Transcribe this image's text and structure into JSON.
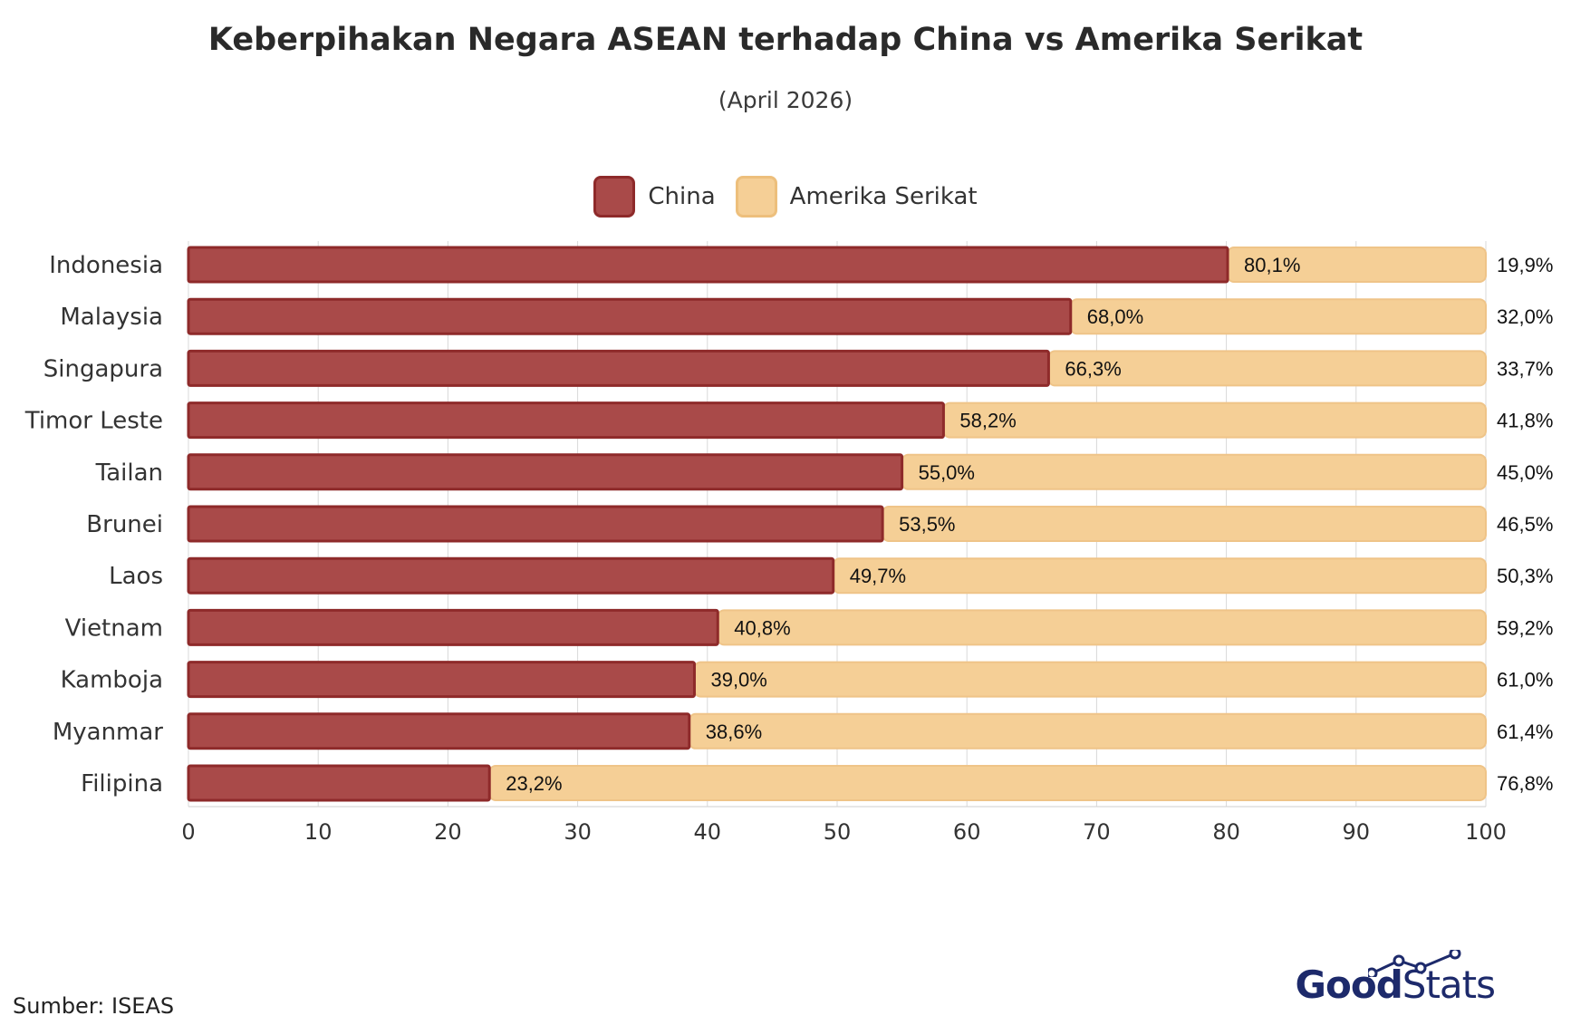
{
  "header": {
    "title": "Keberpihakan Negara ASEAN terhadap China vs Amerika Serikat",
    "subtitle": "(April 2026)"
  },
  "legend": {
    "items": [
      {
        "label": "China",
        "color": "#a94a49",
        "border": "#8e2a2a"
      },
      {
        "label": "Amerika Serikat",
        "color": "#f5cf96",
        "border": "#edbf7c"
      }
    ]
  },
  "footer": {
    "source": "Sumber: ISEAS",
    "logo_part1": "Good",
    "logo_part2": "Stats"
  },
  "chart_data": {
    "type": "bar",
    "orientation": "horizontal",
    "stacked": true,
    "categories": [
      "Indonesia",
      "Malaysia",
      "Singapura",
      "Timor Leste",
      "Tailan",
      "Brunei",
      "Laos",
      "Vietnam",
      "Kamboja",
      "Myanmar",
      "Filipina"
    ],
    "series": [
      {
        "name": "China",
        "color": "#a94a49",
        "values": [
          80.1,
          68.0,
          66.3,
          58.2,
          55.0,
          53.5,
          49.7,
          40.8,
          39.0,
          38.6,
          23.2
        ],
        "labels": [
          "80,1%",
          "68,0%",
          "66,3%",
          "58,2%",
          "55,0%",
          "53,5%",
          "49,7%",
          "40,8%",
          "39,0%",
          "38,6%",
          "23,2%"
        ]
      },
      {
        "name": "Amerika Serikat",
        "color": "#f5cf96",
        "values": [
          19.9,
          32.0,
          33.7,
          41.8,
          45.0,
          46.5,
          50.3,
          59.2,
          61.0,
          61.4,
          76.8
        ],
        "labels": [
          "19,9%",
          "32,0%",
          "33,7%",
          "41,8%",
          "45,0%",
          "46,5%",
          "50,3%",
          "59,2%",
          "61,0%",
          "61,4%",
          "76,8%"
        ]
      }
    ],
    "xlim": [
      0,
      100
    ],
    "xticks": [
      0,
      10,
      20,
      30,
      40,
      50,
      60,
      70,
      80,
      90,
      100
    ],
    "xlabel": "",
    "ylabel": "",
    "grid": true,
    "legend_position": "top-center"
  }
}
